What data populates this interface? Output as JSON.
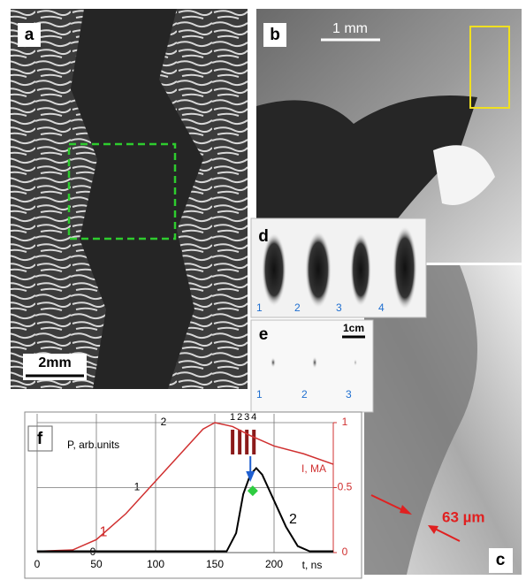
{
  "panels": {
    "a": {
      "label": "a",
      "scale": "2mm"
    },
    "b": {
      "label": "b",
      "scale": "1 mm"
    },
    "c": {
      "label": "c",
      "annotation": "63 µm"
    },
    "d": {
      "label": "d",
      "numbers": [
        "1",
        "2",
        "3",
        "4"
      ]
    },
    "e": {
      "label": "e",
      "scale": "1cm",
      "numbers": [
        "1",
        "2",
        "3"
      ]
    },
    "f": {
      "label": "f"
    }
  },
  "chart_data": {
    "type": "line",
    "x_label": "t, ns",
    "y_label": "P, arb.units",
    "y2_label": "I, MA",
    "xlim": [
      0,
      250
    ],
    "xticks": [
      0,
      50,
      100,
      150,
      200
    ],
    "ylim": [
      0,
      2
    ],
    "yticks": [
      0,
      1,
      2
    ],
    "y2lim": [
      0,
      1
    ],
    "y2ticks": [
      0,
      0.5,
      1
    ],
    "grid": true,
    "series": [
      {
        "name": "1",
        "color": "#d03030",
        "axis": "y2",
        "x": [
          0,
          30,
          50,
          75,
          100,
          125,
          140,
          150,
          165,
          180,
          200,
          225,
          250
        ],
        "values": [
          0.01,
          0.02,
          0.1,
          0.3,
          0.55,
          0.8,
          0.95,
          1.0,
          0.97,
          0.9,
          0.82,
          0.76,
          0.68
        ]
      },
      {
        "name": "2",
        "color": "#000000",
        "x": [
          0,
          100,
          160,
          168,
          174,
          180,
          185,
          190,
          200,
          210,
          220,
          230,
          250
        ],
        "values": [
          0.02,
          0.02,
          0.02,
          0.3,
          0.9,
          1.2,
          1.3,
          1.2,
          0.8,
          0.4,
          0.1,
          0.02,
          0.02
        ]
      }
    ],
    "markers": [
      {
        "label": "1",
        "t": 165
      },
      {
        "label": "2",
        "t": 171
      },
      {
        "label": "3",
        "t": 177
      },
      {
        "label": "4",
        "t": 183
      }
    ],
    "highlight_x": 182,
    "highlight_value": 0.95
  }
}
